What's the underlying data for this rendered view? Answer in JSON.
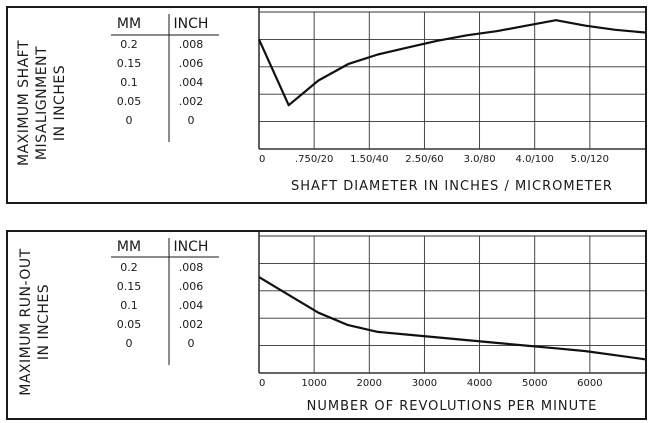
{
  "chart_data": [
    {
      "type": "line",
      "ylabel": [
        "MAXIMUM SHAFT",
        "MISALIGNMENT",
        "IN INCHES"
      ],
      "table": {
        "headers": [
          "MM",
          "INCH"
        ],
        "rows": [
          [
            "0.2",
            ".008"
          ],
          [
            "0.15",
            ".006"
          ],
          [
            "0.1",
            ".004"
          ],
          [
            "0.05",
            ".002"
          ],
          [
            "0",
            "0"
          ]
        ]
      },
      "xlabel": "SHAFT DIAMETER IN INCHES / MICROMETER",
      "xticks": [
        "0",
        ".750/20",
        "1.50/40",
        "2.50/60",
        "3.0/80",
        "4.0/100",
        "5.0/120"
      ],
      "x": [
        0,
        0.5,
        1,
        1.5,
        2,
        2.5,
        3,
        3.5,
        4,
        4.5,
        5,
        5.5,
        6,
        6.5
      ],
      "values": [
        0.008,
        0.0032,
        0.005,
        0.0062,
        0.0069,
        0.0074,
        0.0079,
        0.0083,
        0.0086,
        0.009,
        0.0094,
        0.009,
        0.0087,
        0.0085
      ],
      "ylim": [
        0,
        0.01
      ],
      "grid": true
    },
    {
      "type": "line",
      "ylabel": [
        "MAXIMUM RUN-OUT",
        "IN INCHES"
      ],
      "table": {
        "headers": [
          "MM",
          "INCH"
        ],
        "rows": [
          [
            "0.2",
            ".008"
          ],
          [
            "0.15",
            ".006"
          ],
          [
            "0.1",
            ".004"
          ],
          [
            "0.05",
            ".002"
          ],
          [
            "0",
            "0"
          ]
        ]
      },
      "xlabel": "NUMBER OF REVOLUTIONS PER MINUTE",
      "xticks": [
        "0",
        "1000",
        "2000",
        "3000",
        "4000",
        "5000",
        "6000"
      ],
      "x": [
        0,
        500,
        1000,
        1500,
        2000,
        2500,
        3000,
        3500,
        4000,
        4500,
        5000,
        5500,
        6000,
        6500
      ],
      "values": [
        0.007,
        0.0057,
        0.0044,
        0.0035,
        0.003,
        0.0028,
        0.0026,
        0.0024,
        0.0022,
        0.002,
        0.0018,
        0.0016,
        0.0013,
        0.001
      ],
      "ylim": [
        0,
        0.01
      ],
      "grid": true
    }
  ]
}
